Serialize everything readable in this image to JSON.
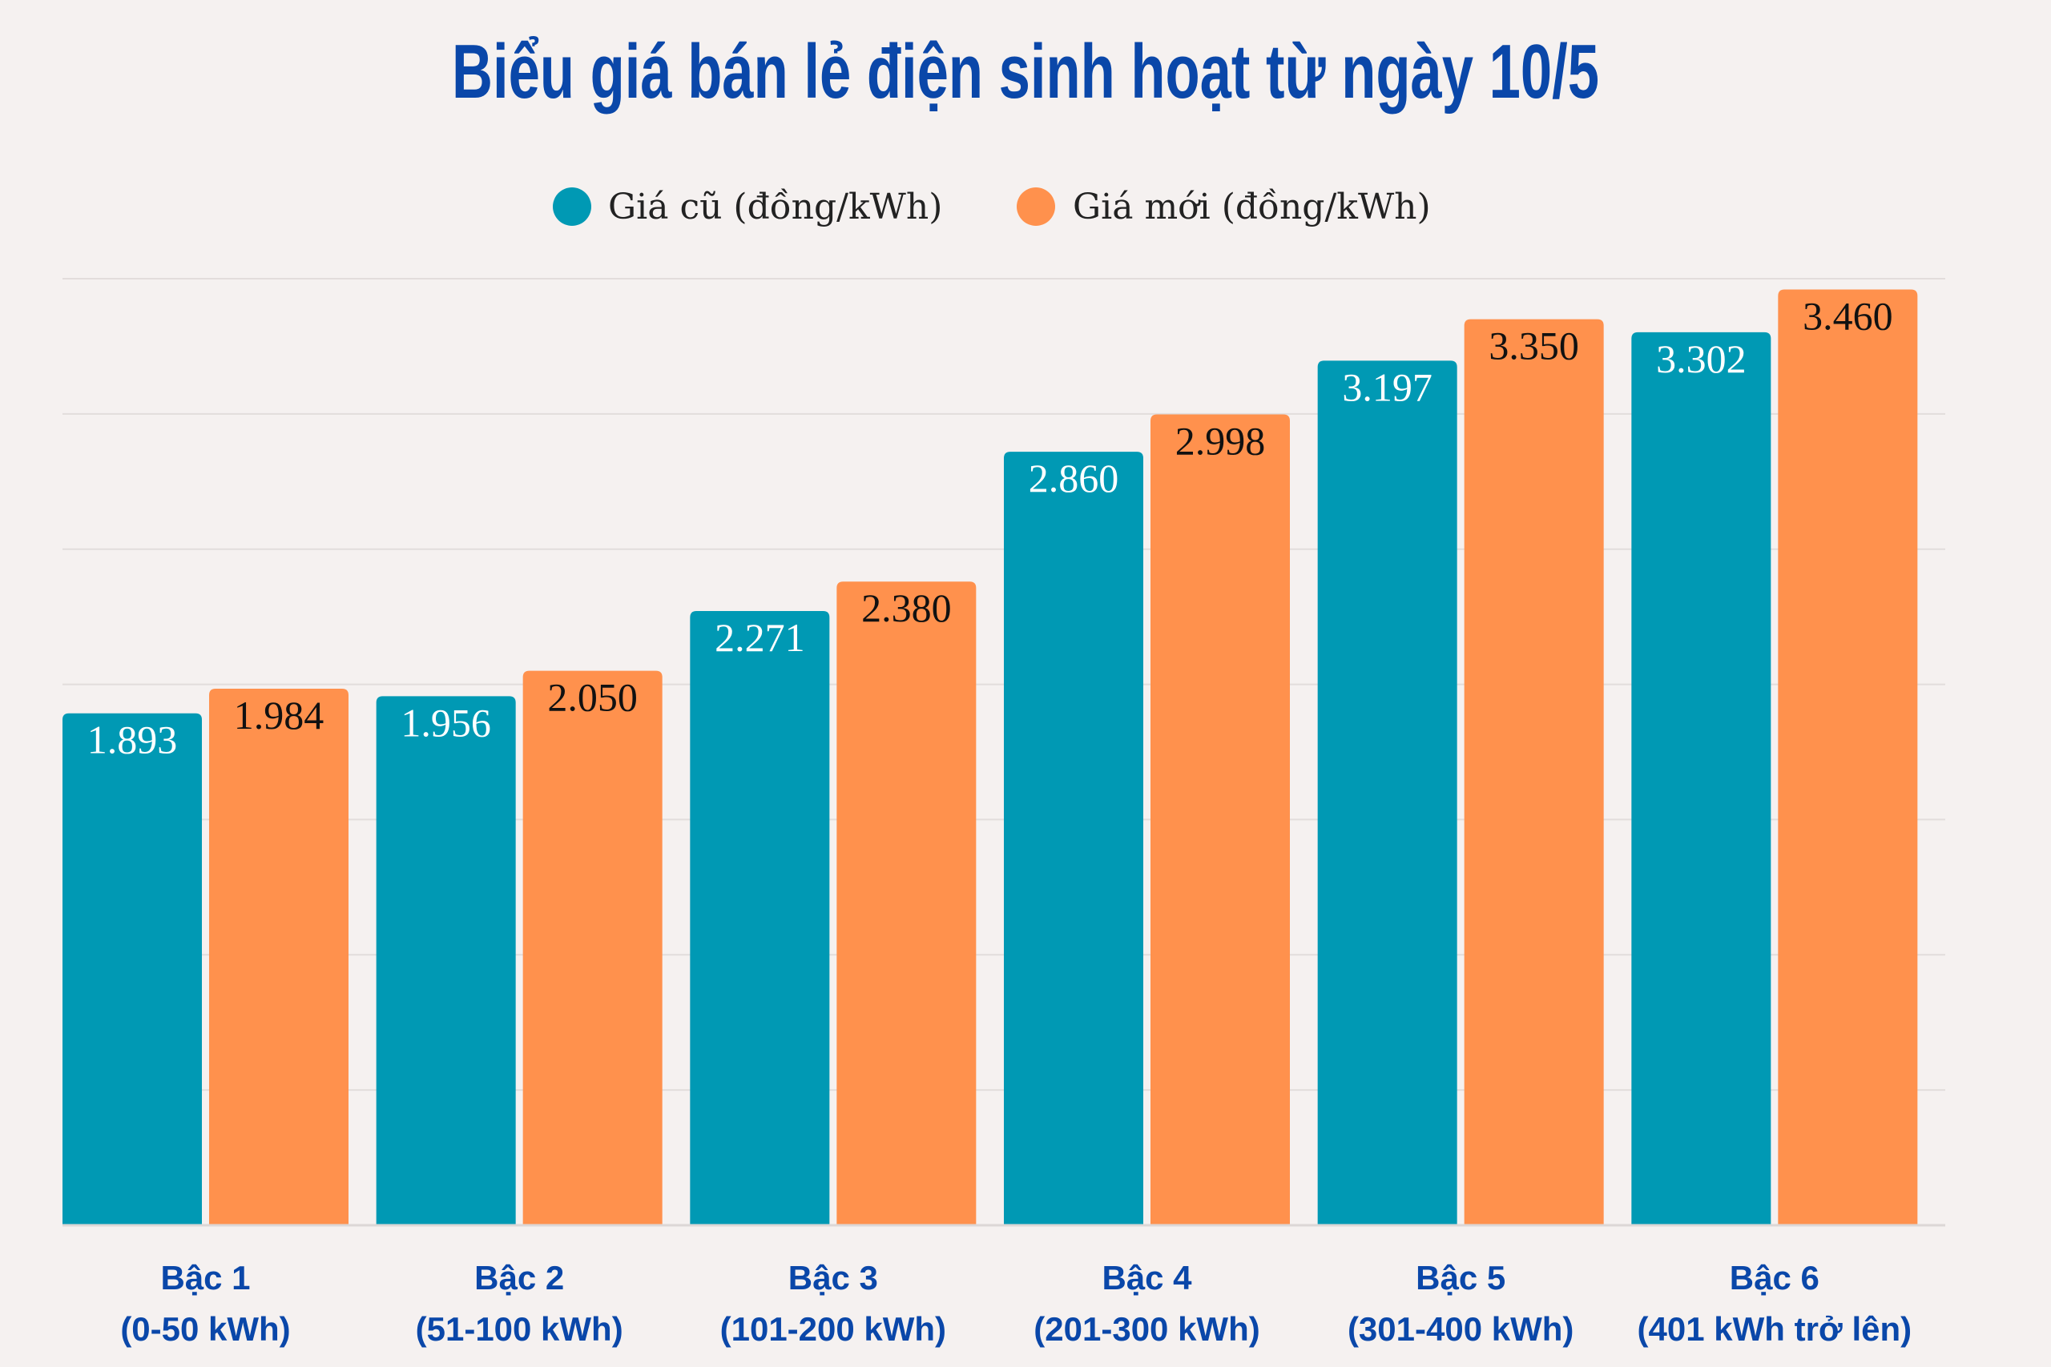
{
  "chart_data": {
    "type": "bar",
    "title": "Biểu giá bán lẻ điện sinh hoạt từ ngày 10/5",
    "categories": [
      [
        "Bậc 1",
        "(0-50 kWh)"
      ],
      [
        "Bậc 2",
        "(51-100 kWh)"
      ],
      [
        "Bậc 3",
        "(101-200 kWh)"
      ],
      [
        "Bậc 4",
        "(201-300 kWh)"
      ],
      [
        "Bậc 5",
        "(301-400 kWh)"
      ],
      [
        "Bậc 6",
        "(401 kWh trở lên)"
      ]
    ],
    "series": [
      {
        "name": "Giá cũ (đồng/kWh)",
        "color": "#0099B4",
        "values": [
          1893,
          1956,
          2271,
          2860,
          3197,
          3302
        ],
        "labels": [
          "1.893",
          "1.956",
          "2.271",
          "2.860",
          "3.197",
          "3.302"
        ],
        "label_color": "#FFFFFF"
      },
      {
        "name": "Giá mới (đồng/kWh)",
        "color": "#FF914D",
        "values": [
          1984,
          2050,
          2380,
          2998,
          3350,
          3460
        ],
        "labels": [
          "1.984",
          "2.050",
          "2.380",
          "2.998",
          "3.350",
          "3.460"
        ],
        "label_color": "#111111"
      }
    ],
    "xlabel": "",
    "ylabel": "",
    "ylim": [
      0,
      3500
    ],
    "grid_step": 500,
    "grid": true,
    "legend": "top-center",
    "y_tick_labels_shown": false
  }
}
